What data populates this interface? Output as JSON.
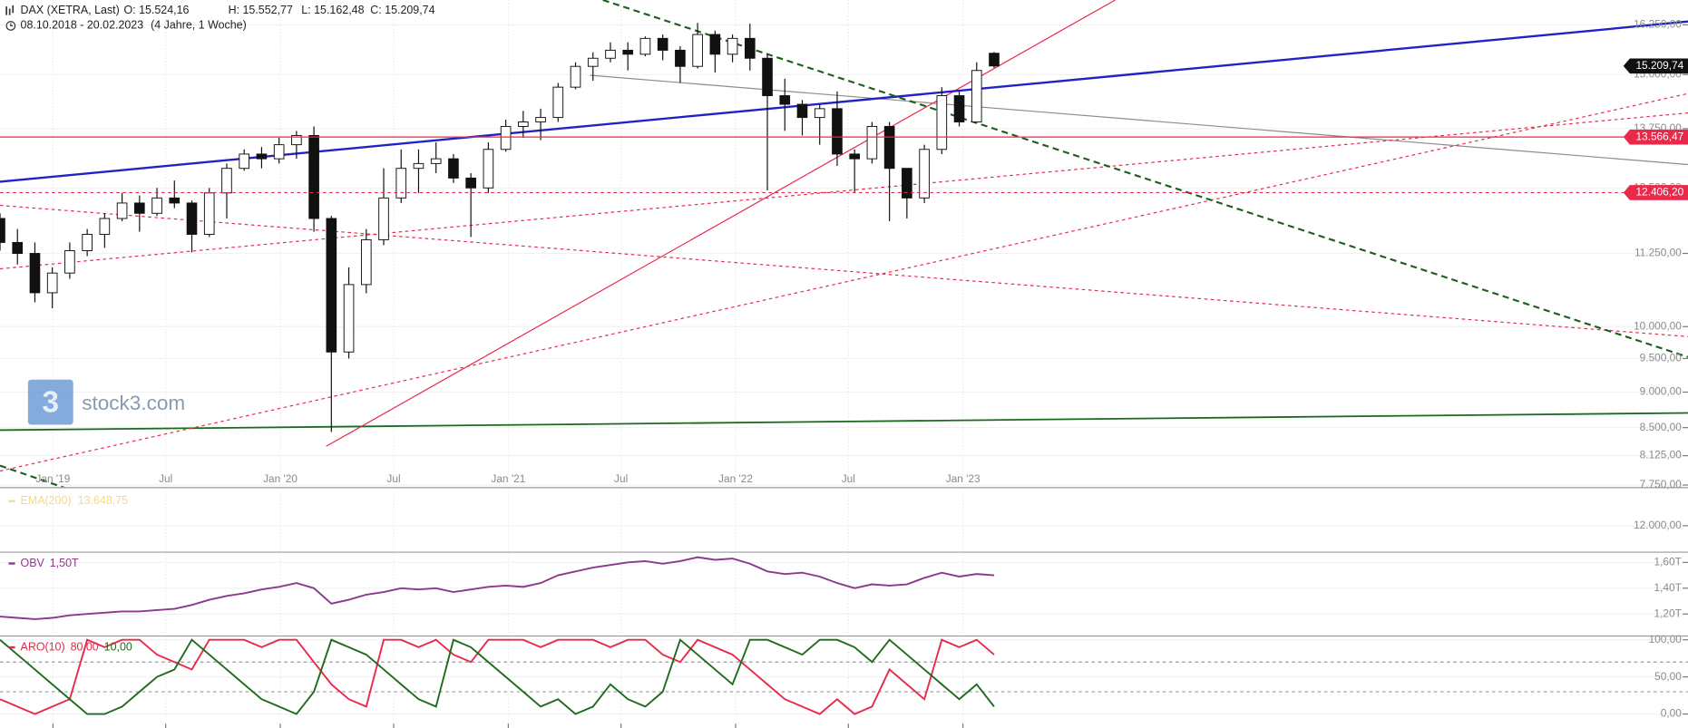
{
  "watermark": "stock3.com",
  "chart_data": [
    {
      "type": "candlestick",
      "title": "DAX (XETRA, Last)",
      "ohlc_labels": [
        "O: 15.524,16",
        "H: 15.552,77",
        "L: 15.162,48",
        "C: 15.209,74"
      ],
      "subtitle": "08.10.2018 - 20.02.2023",
      "period": "(4 Jahre, 1 Woche)",
      "log_scale": true,
      "x": [
        "2018-10-08",
        "2018-11-05",
        "2018-12-03",
        "2018-12-31",
        "2019-01-28",
        "2019-02-25",
        "2019-03-25",
        "2019-04-22",
        "2019-05-20",
        "2019-06-17",
        "2019-07-15",
        "2019-08-12",
        "2019-09-09",
        "2019-10-07",
        "2019-11-04",
        "2019-12-02",
        "2019-12-30",
        "2020-01-27",
        "2020-02-24",
        "2020-03-23",
        "2020-04-20",
        "2020-05-18",
        "2020-06-15",
        "2020-07-13",
        "2020-08-10",
        "2020-09-07",
        "2020-10-05",
        "2020-11-02",
        "2020-11-30",
        "2020-12-28",
        "2021-01-25",
        "2021-02-22",
        "2021-03-22",
        "2021-04-19",
        "2021-05-17",
        "2021-06-14",
        "2021-07-12",
        "2021-08-09",
        "2021-09-06",
        "2021-10-04",
        "2021-11-01",
        "2021-11-29",
        "2021-12-27",
        "2022-01-24",
        "2022-02-21",
        "2022-03-21",
        "2022-04-18",
        "2022-05-16",
        "2022-06-13",
        "2022-07-11",
        "2022-08-08",
        "2022-09-05",
        "2022-10-03",
        "2022-10-31",
        "2022-11-28",
        "2022-12-26",
        "2023-01-23",
        "2023-02-20"
      ],
      "open": [
        11900,
        11450,
        11250,
        10560,
        10900,
        11300,
        11600,
        11900,
        12200,
        12000,
        12300,
        12200,
        11600,
        12400,
        12900,
        13200,
        13100,
        13400,
        13600,
        11900,
        9600,
        10700,
        11500,
        12300,
        12900,
        13000,
        13100,
        12700,
        12500,
        13300,
        13800,
        13900,
        14000,
        14700,
        15200,
        15400,
        15600,
        15500,
        15900,
        15600,
        15200,
        16000,
        15500,
        15900,
        15400,
        14500,
        14300,
        14000,
        14200,
        13200,
        13100,
        13800,
        12900,
        12300,
        13300,
        14500,
        13900,
        15524.16
      ],
      "high": [
        12000,
        11700,
        11450,
        11000,
        11450,
        11700,
        12000,
        12400,
        12350,
        12500,
        12650,
        12250,
        12500,
        13000,
        13300,
        13350,
        13550,
        13700,
        13800,
        11950,
        11000,
        11700,
        12900,
        13300,
        13300,
        13450,
        13200,
        12800,
        13450,
        13950,
        14150,
        14200,
        14800,
        15300,
        15550,
        15800,
        15800,
        15950,
        16000,
        15700,
        16300,
        16100,
        16000,
        16280,
        15500,
        14900,
        14400,
        14300,
        14600,
        13300,
        13900,
        13900,
        12900,
        13400,
        14700,
        14600,
        15300,
        15552.77
      ],
      "low": [
        11300,
        11050,
        10400,
        10300,
        10800,
        11200,
        11350,
        11850,
        11650,
        11950,
        12100,
        11270,
        11550,
        11900,
        12850,
        12900,
        13000,
        13100,
        11650,
        8440,
        9500,
        10550,
        11400,
        12200,
        12400,
        12800,
        12600,
        11550,
        12400,
        13250,
        13550,
        13500,
        13900,
        14650,
        14850,
        15300,
        15100,
        15450,
        15350,
        14800,
        15150,
        15050,
        15300,
        15100,
        12450,
        13700,
        13600,
        13400,
        12950,
        12400,
        13000,
        11850,
        11900,
        12200,
        13200,
        13800,
        13900,
        15162.48
      ],
      "close": [
        11450,
        11250,
        10560,
        10900,
        11300,
        11600,
        11900,
        12200,
        12000,
        12300,
        12200,
        11600,
        12400,
        12900,
        13200,
        13100,
        13400,
        13600,
        11900,
        9600,
        10700,
        11500,
        12300,
        12900,
        13000,
        13100,
        12700,
        12500,
        13300,
        13800,
        13900,
        14000,
        14700,
        15200,
        15400,
        15600,
        15500,
        15900,
        15600,
        15200,
        16000,
        15500,
        15900,
        15400,
        14500,
        14300,
        14000,
        14200,
        13200,
        13100,
        13800,
        12900,
        12300,
        13300,
        14500,
        13900,
        15100,
        15209.74
      ],
      "xlim": [
        "2018-10-08",
        "2026-03-10"
      ],
      "xticks": [
        {
          "value": "2019-01-01",
          "label": "Jan '19"
        },
        {
          "value": "2019-07-01",
          "label": "Jul"
        },
        {
          "value": "2020-01-01",
          "label": "Jan '20"
        },
        {
          "value": "2020-07-01",
          "label": "Jul"
        },
        {
          "value": "2021-01-01",
          "label": "Jan '21"
        },
        {
          "value": "2021-07-01",
          "label": "Jul"
        },
        {
          "value": "2022-01-01",
          "label": "Jan '22"
        },
        {
          "value": "2022-07-01",
          "label": "Jul"
        },
        {
          "value": "2023-01-01",
          "label": "Jan '23"
        }
      ],
      "ylim": [
        7724,
        16913
      ],
      "yticks": [
        {
          "value": 16250,
          "label": "16.250,00"
        },
        {
          "value": 15000,
          "label": "15.000,00"
        },
        {
          "value": 13750,
          "label": "13.750,00"
        },
        {
          "value": 12500,
          "label": "12.500,00"
        },
        {
          "value": 11250,
          "label": "11.250,00"
        },
        {
          "value": 10000,
          "label": "10.000,00"
        },
        {
          "value": 9500,
          "label": "9.500,00"
        },
        {
          "value": 9000,
          "label": "9.000,00"
        },
        {
          "value": 8500,
          "label": "8.500,00"
        },
        {
          "value": 8125,
          "label": "8.125,00"
        },
        {
          "value": 7750,
          "label": "7.750,00"
        }
      ],
      "annotations": [
        {
          "value": 15209.74,
          "label": "15.209,74",
          "color": "#111111"
        },
        {
          "value": 13566.47,
          "label": "13.566,47",
          "color": "#e8294a",
          "line": "solid"
        },
        {
          "value": 12406.2,
          "label": "12.406,20",
          "color": "#e8294a",
          "line": "dashed"
        }
      ]
    },
    {
      "type": "indicator",
      "legend": [
        {
          "name": "EMA(200)",
          "label": "13.648,75",
          "color": "#f3d98a"
        }
      ],
      "ylim": [
        11000,
        13450
      ],
      "yticks": [
        {
          "value": 12000,
          "label": "12.000,00"
        }
      ]
    },
    {
      "type": "line",
      "series": [
        {
          "name": "OBV",
          "label": "1,50T",
          "color": "#8b3a8b",
          "values": [
            1.18,
            1.17,
            1.16,
            1.17,
            1.19,
            1.2,
            1.21,
            1.22,
            1.22,
            1.23,
            1.24,
            1.27,
            1.31,
            1.34,
            1.36,
            1.39,
            1.41,
            1.44,
            1.4,
            1.28,
            1.31,
            1.35,
            1.37,
            1.4,
            1.39,
            1.4,
            1.37,
            1.39,
            1.41,
            1.42,
            1.41,
            1.44,
            1.5,
            1.53,
            1.56,
            1.58,
            1.6,
            1.61,
            1.59,
            1.61,
            1.64,
            1.62,
            1.63,
            1.59,
            1.53,
            1.51,
            1.52,
            1.49,
            1.44,
            1.4,
            1.43,
            1.42,
            1.43,
            1.48,
            1.52,
            1.49,
            1.51,
            1.5
          ]
        }
      ],
      "ylim": [
        1.033,
        1.675
      ],
      "yticks": [
        {
          "value": 1.6,
          "label": "1,60T"
        },
        {
          "value": 1.4,
          "label": "1,40T"
        },
        {
          "value": 1.2,
          "label": "1,20T"
        }
      ]
    },
    {
      "type": "line",
      "title": "ARO(10)",
      "levels": [
        70,
        30
      ],
      "series": [
        {
          "label": "80,00",
          "color": "#e8294a",
          "values": [
            20,
            10,
            0,
            10,
            20,
            100,
            90,
            100,
            100,
            80,
            70,
            60,
            100,
            100,
            100,
            90,
            100,
            100,
            70,
            40,
            20,
            10,
            100,
            100,
            90,
            100,
            80,
            70,
            100,
            100,
            100,
            90,
            100,
            100,
            100,
            90,
            100,
            100,
            80,
            70,
            100,
            90,
            80,
            60,
            40,
            20,
            10,
            0,
            20,
            0,
            10,
            60,
            40,
            20,
            100,
            90,
            100,
            80
          ]
        },
        {
          "label": "10,00",
          "color": "#1e6b1e",
          "values": [
            100,
            80,
            60,
            40,
            20,
            0,
            0,
            10,
            30,
            50,
            60,
            100,
            80,
            60,
            40,
            20,
            10,
            0,
            30,
            100,
            90,
            80,
            60,
            40,
            20,
            10,
            100,
            90,
            70,
            50,
            30,
            10,
            20,
            0,
            10,
            40,
            20,
            10,
            30,
            100,
            80,
            60,
            40,
            100,
            100,
            90,
            80,
            100,
            100,
            90,
            70,
            100,
            80,
            60,
            40,
            20,
            40,
            10
          ]
        }
      ],
      "ylim": [
        -18.8,
        104.3
      ],
      "yticks": [
        {
          "value": 100,
          "label": "100,00"
        },
        {
          "value": 50,
          "label": "50,00"
        },
        {
          "value": 0,
          "label": "0,00"
        }
      ]
    }
  ]
}
